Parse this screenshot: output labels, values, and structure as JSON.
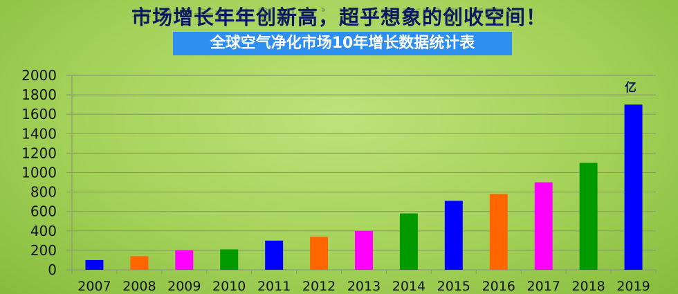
{
  "header": {
    "title": "市场增长年年创新高，超乎想象的创收空间！",
    "subtitle": "全球空气净化市场10年增长数据统计表"
  },
  "chart_data": {
    "type": "bar",
    "title": "全球空气净化市场10年增长数据统计表",
    "unit_label": "亿",
    "categories": [
      "2007",
      "2008",
      "2009",
      "2010",
      "2011",
      "2012",
      "2013",
      "2014",
      "2015",
      "2016",
      "2017",
      "2018",
      "2019"
    ],
    "values": [
      100,
      140,
      200,
      210,
      300,
      340,
      400,
      580,
      710,
      780,
      900,
      1100,
      1700
    ],
    "colors": [
      "#0000ff",
      "#ff6600",
      "#ff00ff",
      "#009900",
      "#0000ff",
      "#ff6600",
      "#ff00ff",
      "#009900",
      "#0000ff",
      "#ff6600",
      "#ff00ff",
      "#009900",
      "#0000ff"
    ],
    "ylim": [
      0,
      2000
    ],
    "yticks": [
      0,
      200,
      400,
      600,
      800,
      1000,
      1200,
      1400,
      1600,
      1800,
      2000
    ],
    "grid": true,
    "xlabel": "",
    "ylabel": ""
  }
}
